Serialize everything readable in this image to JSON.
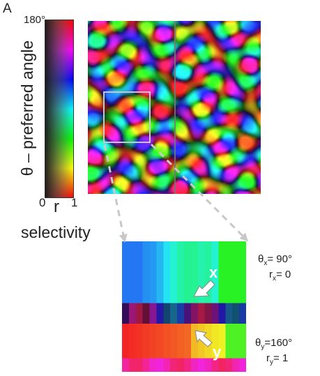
{
  "figure": {
    "panel_letter": "A",
    "y_axis_label": "θ – preferred angle",
    "x_axis_label": "selectivity",
    "colorbar": {
      "top_tick": "180°",
      "left_tick": "0",
      "right_tick": "1",
      "r_label": "r"
    },
    "points": {
      "x": {
        "label": "x",
        "theta_var": "θ",
        "theta_sub": "x",
        "theta_val": "= 90°",
        "r_var": "r",
        "r_sub": "x",
        "r_val": "= 0"
      },
      "y": {
        "label": "y",
        "theta_var": "θ",
        "theta_sub": "y",
        "theta_val": "=160°",
        "r_var": "r",
        "r_sub": "y",
        "r_val": "= 1"
      }
    }
  },
  "colors": {
    "zoom_box": "#c8c8c8",
    "arrows": "#c8c8c8",
    "background": "#ffffff"
  }
}
